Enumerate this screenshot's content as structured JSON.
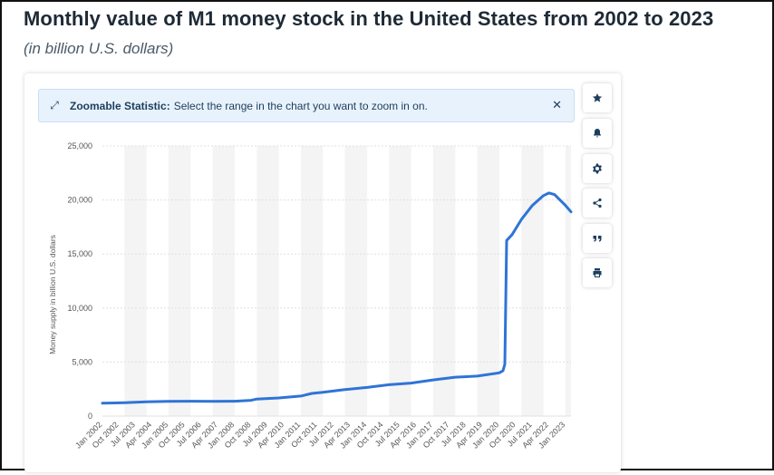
{
  "header": {
    "title": "Monthly value of M1 money stock in the United States from 2002 to 2023",
    "subtitle": "(in billion U.S. dollars)"
  },
  "banner": {
    "bold_label": "Zoomable Statistic:",
    "text": "Select the range in the chart you want to zoom in on.",
    "close_symbol": "✕"
  },
  "tools": [
    {
      "name": "star-icon"
    },
    {
      "name": "bell-icon"
    },
    {
      "name": "gear-icon"
    },
    {
      "name": "share-icon"
    },
    {
      "name": "quote-icon"
    },
    {
      "name": "print-icon"
    }
  ],
  "colors": {
    "line": "#2f74d6",
    "band": "#f4f4f4",
    "grid": "#e0e0e0"
  },
  "chart_data": {
    "type": "line",
    "title": "",
    "xlabel": "",
    "ylabel": "Money supply in billion U.S. dollars",
    "ylim": [
      0,
      25000
    ],
    "yticks": [
      0,
      5000,
      10000,
      15000,
      20000,
      25000
    ],
    "ytick_labels": [
      "0",
      "5,000",
      "10,000",
      "15,000",
      "20,000",
      "25,000"
    ],
    "xtick_labels": [
      "Jan 2002",
      "Oct 2002",
      "Jul 2003",
      "Apr 2004",
      "Jan 2005",
      "Oct 2005",
      "Jul 2006",
      "Apr 2007",
      "Jan 2008",
      "Oct 2008",
      "Jul 2009",
      "Apr 2010",
      "Jan 2011",
      "Oct 2011",
      "Jul 2012",
      "Apr 2013",
      "Jan 2014",
      "Oct 2014",
      "Jul 2015",
      "Apr 2016",
      "Jan 2017",
      "Oct 2017",
      "Jul 2018",
      "Apr 2019",
      "Jan 2020",
      "Oct 2020",
      "Jul 2021",
      "Apr 2022",
      "Jan 2023"
    ],
    "series": [
      {
        "points": [
          [
            "Jan 2002",
            1190
          ],
          [
            "Jan 2003",
            1230
          ],
          [
            "Jan 2004",
            1320
          ],
          [
            "Jan 2005",
            1370
          ],
          [
            "Jan 2006",
            1380
          ],
          [
            "Jan 2007",
            1370
          ],
          [
            "Jan 2008",
            1380
          ],
          [
            "Oct 2008",
            1460
          ],
          [
            "Jan 2009",
            1580
          ],
          [
            "Jan 2010",
            1680
          ],
          [
            "Jan 2011",
            1850
          ],
          [
            "Jul 2011",
            2100
          ],
          [
            "Jan 2012",
            2200
          ],
          [
            "Jan 2013",
            2450
          ],
          [
            "Jan 2014",
            2650
          ],
          [
            "Jan 2015",
            2900
          ],
          [
            "Jan 2016",
            3050
          ],
          [
            "Jan 2017",
            3350
          ],
          [
            "Jan 2018",
            3600
          ],
          [
            "Jan 2019",
            3700
          ],
          [
            "Jan 2020",
            4000
          ],
          [
            "Mar 2020",
            4200
          ],
          [
            "Apr 2020",
            4800
          ],
          [
            "May 2020",
            16250
          ],
          [
            "Aug 2020",
            16800
          ],
          [
            "Jan 2021",
            18200
          ],
          [
            "Jul 2021",
            19500
          ],
          [
            "Jan 2022",
            20400
          ],
          [
            "Apr 2022",
            20650
          ],
          [
            "Jul 2022",
            20500
          ],
          [
            "Oct 2022",
            20000
          ],
          [
            "Jan 2023",
            19500
          ],
          [
            "Apr 2023",
            18900
          ]
        ]
      }
    ]
  }
}
